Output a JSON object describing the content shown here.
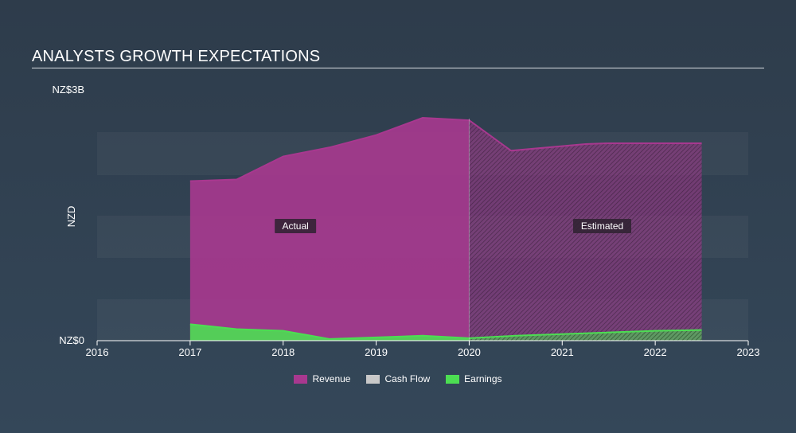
{
  "header": {
    "title": "ANALYSTS GROWTH EXPECTATIONS"
  },
  "chart_data": {
    "type": "area",
    "title": "ANALYSTS GROWTH EXPECTATIONS",
    "ylabel": "NZD",
    "y_tick_labels": [
      "NZ$0",
      "NZ$3B"
    ],
    "ylim": [
      0,
      3
    ],
    "y_unit": "NZ$ billions",
    "xlim": [
      2016,
      2023
    ],
    "x_ticks": [
      2016,
      2017,
      2018,
      2019,
      2020,
      2021,
      2022,
      2023
    ],
    "regions": [
      {
        "label": "Actual",
        "from": 2017,
        "to": 2020
      },
      {
        "label": "Estimated",
        "from": 2020,
        "to": 2022.5
      }
    ],
    "grid": "horizontal bands",
    "legend_position": "bottom-center",
    "series": [
      {
        "name": "Revenue",
        "color": "#a8388f",
        "x": [
          2017,
          2017.5,
          2018,
          2018.5,
          2019,
          2019.5,
          2020,
          2020.45,
          2021.25,
          2021.5,
          2022,
          2022.5
        ],
        "values": [
          1.94,
          1.96,
          2.24,
          2.35,
          2.5,
          2.71,
          2.68,
          2.31,
          2.39,
          2.4,
          2.4,
          2.4
        ]
      },
      {
        "name": "Cash Flow",
        "color": "#c8c8c8",
        "x": [],
        "values": []
      },
      {
        "name": "Earnings",
        "color": "#4cde52",
        "x": [
          2017,
          2017.5,
          2018,
          2018.5,
          2019,
          2019.5,
          2020,
          2020.5,
          2021,
          2021.5,
          2022,
          2022.5
        ],
        "values": [
          0.2,
          0.14,
          0.12,
          0.02,
          0.04,
          0.06,
          0.03,
          0.06,
          0.08,
          0.1,
          0.12,
          0.13
        ]
      }
    ]
  },
  "legend": {
    "items": [
      {
        "label": "Revenue",
        "color": "#a8388f"
      },
      {
        "label": "Cash Flow",
        "color": "#c8c8c8"
      },
      {
        "label": "Earnings",
        "color": "#4cde52"
      }
    ]
  }
}
